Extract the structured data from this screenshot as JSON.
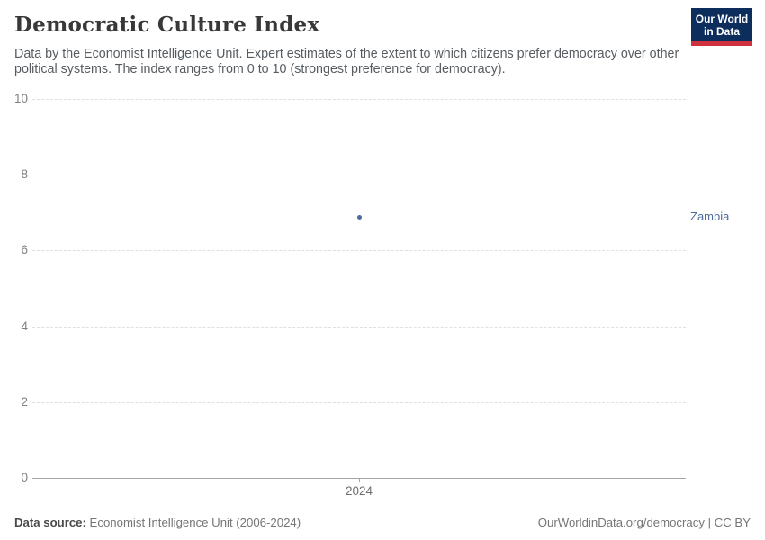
{
  "header": {
    "title": "Democratic Culture Index",
    "subtitle": "Data by the Economist Intelligence Unit. Expert estimates of the extent to which citizens prefer democracy over other political systems. The index ranges from 0 to 10 (strongest preference for democracy).",
    "logo": {
      "line1": "Our World",
      "line2": "in Data"
    }
  },
  "chart_data": {
    "type": "scatter",
    "title": "Democratic Culture Index",
    "x": [
      2024
    ],
    "series": [
      {
        "name": "Zambia",
        "values": [
          6.88
        ]
      }
    ],
    "xlabel": "",
    "ylabel": "",
    "ylim": [
      0,
      10
    ],
    "yticks": [
      0,
      2,
      4,
      6,
      8,
      10
    ],
    "xticks": [
      "2024"
    ],
    "grid": "horizontal-dashed",
    "legend_position": "right-of-point",
    "point_color": "#4c6a9c"
  },
  "footer": {
    "source_label": "Data source:",
    "source_text": " Economist Intelligence Unit (2006-2024)",
    "rights": "OurWorldinData.org/democracy | CC BY"
  },
  "colors": {
    "accent_blue": "#4c6a9c",
    "logo_bg": "#0d2e5c",
    "logo_red": "#cf303e",
    "grid": "#e0e0e0",
    "axis": "#a5a5a5",
    "tick_text": "#808080"
  }
}
